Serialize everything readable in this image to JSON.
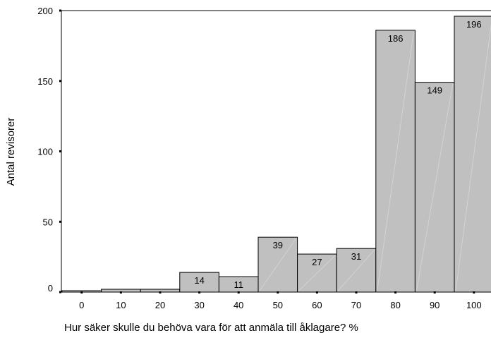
{
  "chart_data": {
    "type": "bar",
    "categories": [
      "0",
      "10",
      "20",
      "30",
      "40",
      "50",
      "60",
      "70",
      "80",
      "90",
      "100"
    ],
    "values": [
      1,
      2,
      2,
      14,
      11,
      39,
      27,
      31,
      186,
      149,
      196
    ],
    "data_labels": [
      "",
      "",
      "",
      "14",
      "11",
      "39",
      "27",
      "31",
      "186",
      "149",
      "196"
    ],
    "xlabel": "Hur säker skulle du behöva vara för att anmäla till åklagare? %",
    "ylabel": "Antal revisorer",
    "ylim": [
      0,
      200
    ],
    "yticks": [
      "0",
      "50",
      "100",
      "150",
      "200"
    ],
    "grid": false,
    "bar_color": "#c0c0c0",
    "edge_color": "#000000"
  }
}
